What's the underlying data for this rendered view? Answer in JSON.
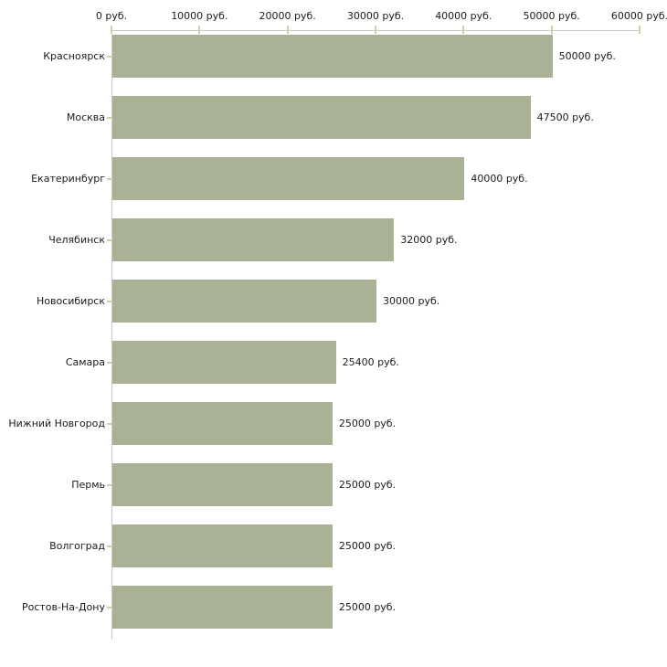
{
  "chart_data": {
    "type": "bar",
    "orientation": "horizontal",
    "title": "",
    "xlabel": "",
    "ylabel": "",
    "grid": false,
    "legend": false,
    "categories": [
      "Красноярск",
      "Москва",
      "Екатеринбург",
      "Челябинск",
      "Новосибирск",
      "Самара",
      "Нижний Новгород",
      "Пермь",
      "Волгоград",
      "Ростов-На-Дону"
    ],
    "values": [
      50000,
      47500,
      40000,
      32000,
      30000,
      25400,
      25000,
      25000,
      25000,
      25000
    ],
    "value_labels": [
      "50000 руб.",
      "47500 руб.",
      "40000 руб.",
      "32000 руб.",
      "30000 руб.",
      "25400 руб.",
      "25000 руб.",
      "25000 руб.",
      "25000 руб.",
      "25000 руб."
    ],
    "x_axis": {
      "position": "top",
      "min": 0,
      "max": 60000,
      "ticks": [
        0,
        10000,
        20000,
        30000,
        40000,
        50000,
        60000
      ],
      "tick_labels": [
        "0 руб.",
        "10000 руб.",
        "20000 руб.",
        "30000 руб.",
        "40000 руб.",
        "50000 руб.",
        "60000 руб."
      ]
    },
    "colors": {
      "bar": "#a9b294",
      "axis_line": "#c8c8c8",
      "tick": "#cfd0a6",
      "text": "#1b1b1b",
      "background": "#ffffff"
    }
  }
}
